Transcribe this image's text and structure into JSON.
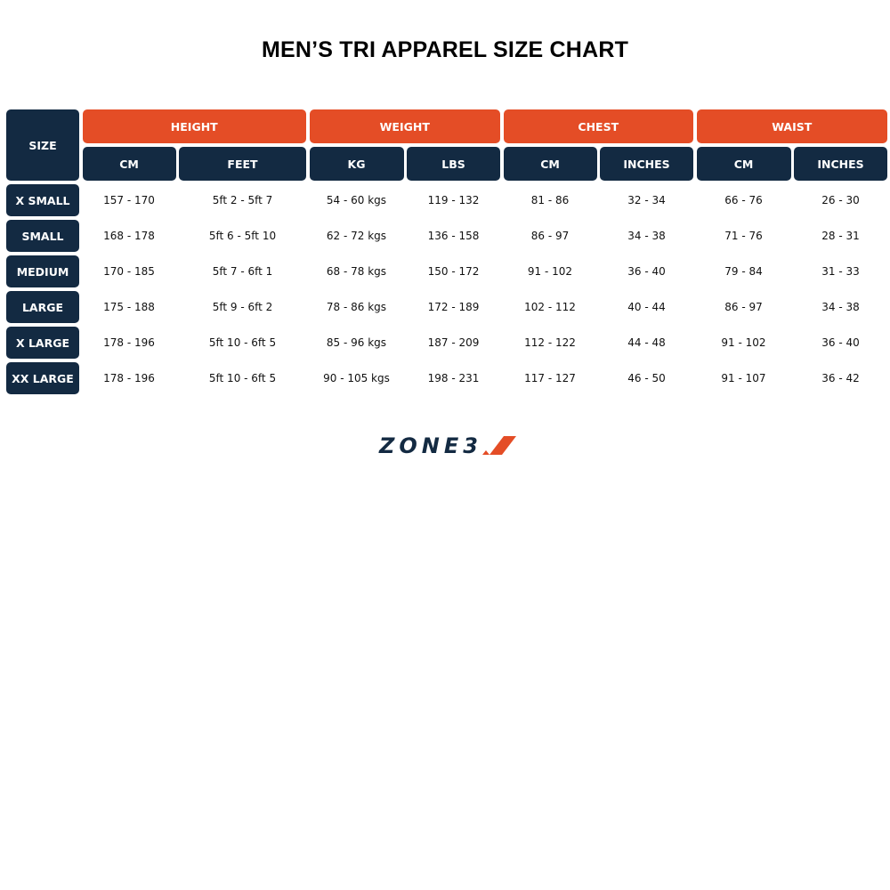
{
  "title": "MEN’S TRI APPAREL SIZE CHART",
  "table": {
    "size_header": "SIZE",
    "groups": [
      {
        "label": "HEIGHT",
        "units": [
          "CM",
          "FEET"
        ]
      },
      {
        "label": "WEIGHT",
        "units": [
          "KG",
          "LBS"
        ]
      },
      {
        "label": "CHEST",
        "units": [
          "CM",
          "INCHES"
        ]
      },
      {
        "label": "WAIST",
        "units": [
          "CM",
          "INCHES"
        ]
      }
    ],
    "rows": [
      {
        "size": "X SMALL",
        "values": [
          "157 - 170",
          "5ft 2 - 5ft 7",
          "54 - 60 kgs",
          "119 - 132",
          "81 - 86",
          "32 - 34",
          "66 - 76",
          "26 - 30"
        ]
      },
      {
        "size": "SMALL",
        "values": [
          "168 - 178",
          "5ft 6 - 5ft 10",
          "62 - 72 kgs",
          "136 - 158",
          "86 - 97",
          "34 - 38",
          "71 - 76",
          "28 - 31"
        ]
      },
      {
        "size": "MEDIUM",
        "values": [
          "170 - 185",
          "5ft 7 - 6ft 1",
          "68 - 78 kgs",
          "150 - 172",
          "91 - 102",
          "36 - 40",
          "79 - 84",
          "31 - 33"
        ]
      },
      {
        "size": "LARGE",
        "values": [
          "175 - 188",
          "5ft 9 - 6ft 2",
          "78 - 86 kgs",
          "172 - 189",
          "102 - 112",
          "40 - 44",
          "86 - 97",
          "34 - 38"
        ]
      },
      {
        "size": "X LARGE",
        "values": [
          "178 - 196",
          "5ft 10 - 6ft 5",
          "85 - 96 kgs",
          "187 - 209",
          "112 - 122",
          "44 - 48",
          "91 - 102",
          "36 - 40"
        ]
      },
      {
        "size": "XX LARGE",
        "values": [
          "178 - 196",
          "5ft 10 - 6ft 5",
          "90 - 105 kgs",
          "198 - 231",
          "117 - 127",
          "46 - 50",
          "91 - 107",
          "36 - 42"
        ]
      }
    ]
  },
  "logo": {
    "text": "ZONE3"
  },
  "colors": {
    "accent": "#e44d26",
    "navy": "#132a42"
  }
}
